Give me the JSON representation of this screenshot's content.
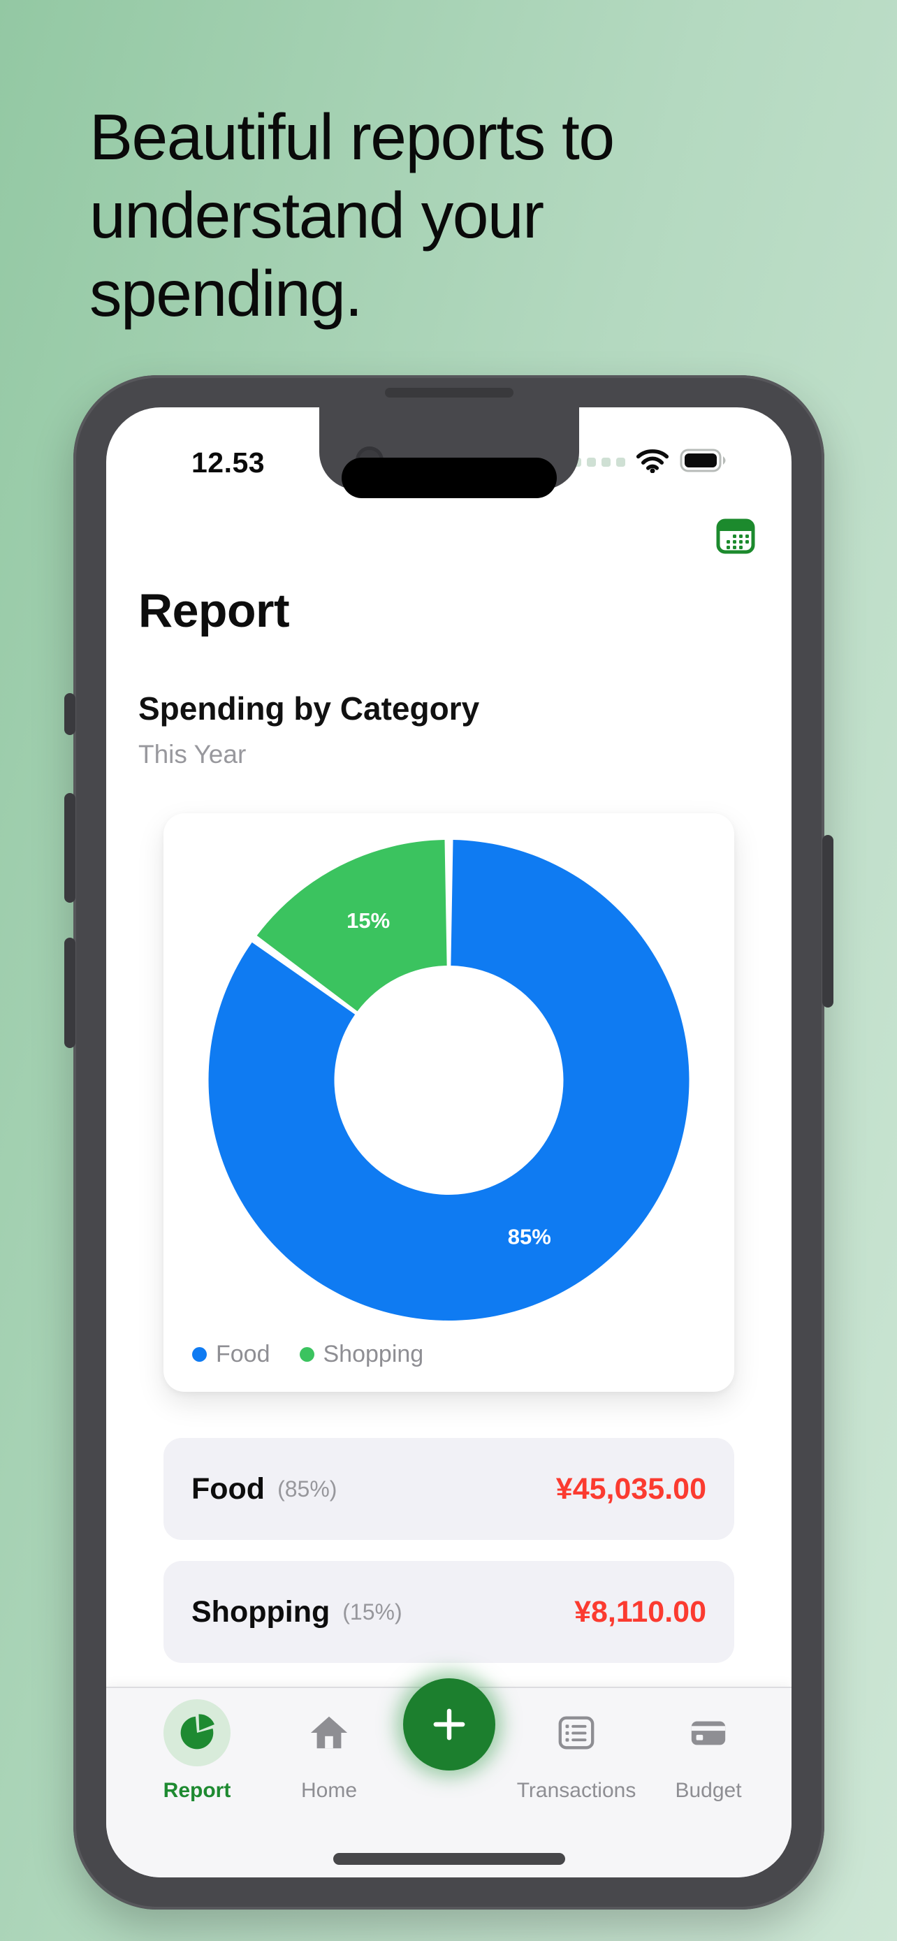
{
  "hero": {
    "headline_lines": [
      "Beautiful reports to",
      "understand your",
      "spending."
    ]
  },
  "status_bar": {
    "time": "12.53",
    "icons": [
      "cellular-signal-icon",
      "wifi-icon",
      "battery-icon"
    ]
  },
  "nav": {
    "calendar_icon": "calendar-icon"
  },
  "page": {
    "title": "Report",
    "section_title": "Spending by Category",
    "section_subtitle": "This Year"
  },
  "chart_data": {
    "type": "pie",
    "donut": true,
    "title": "Spending by Category",
    "period": "This Year",
    "start_angle_deg": 0,
    "slice_label_color": "#ffffff",
    "legend_position": "bottom-left",
    "legend": [
      "Food",
      "Shopping"
    ],
    "slices": [
      {
        "name": "Food",
        "value": 45035.0,
        "percent": 85,
        "percent_label": "85%",
        "amount_label": "¥45,035.00",
        "color": "#0f7bf2"
      },
      {
        "name": "Shopping",
        "value": 8110.0,
        "percent": 15,
        "percent_label": "15%",
        "amount_label": "¥8,110.00",
        "color": "#3bc35f"
      }
    ]
  },
  "category_rows": [
    {
      "name": "Food",
      "percent_label": "(85%)",
      "amount": "¥45,035.00"
    },
    {
      "name": "Shopping",
      "percent_label": "(15%)",
      "amount": "¥8,110.00"
    }
  ],
  "tab_bar": {
    "tabs": [
      {
        "label": "Report",
        "icon": "pie-chart-icon",
        "active": true
      },
      {
        "label": "Home",
        "icon": "home-icon",
        "active": false
      },
      {
        "label": "Transactions",
        "icon": "transactions-list-icon",
        "active": false
      },
      {
        "label": "Budget",
        "icon": "credit-card-icon",
        "active": false
      }
    ],
    "fab_icon": "plus-icon"
  },
  "colors": {
    "accent_green": "#1c8a2d",
    "fab_green": "#1c7f2e",
    "chart_blue": "#0f7bf2",
    "chart_green": "#3bc35f",
    "amount_red": "#fb3b30",
    "muted_gray": "#8e8e93"
  }
}
